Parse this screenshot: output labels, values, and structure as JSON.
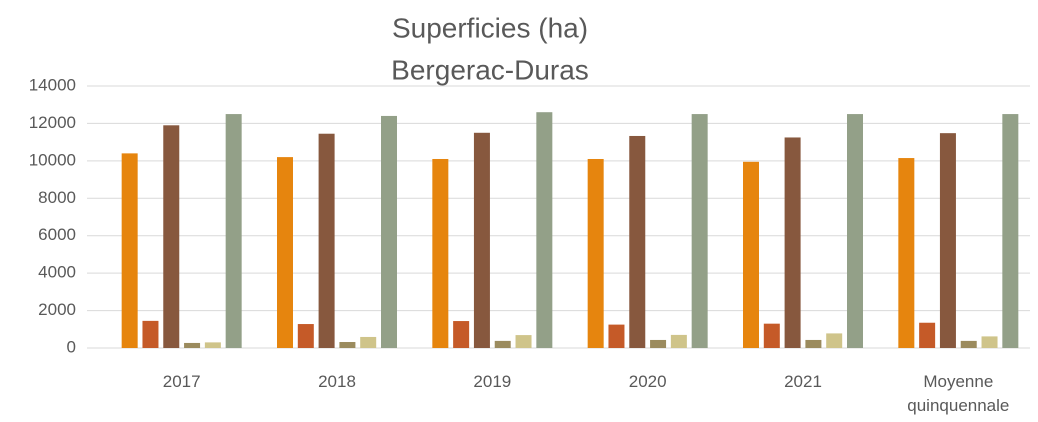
{
  "chart_data": {
    "type": "bar",
    "title": "Superficies (ha)",
    "subtitle": "Bergerac-Duras",
    "categories": [
      "2017",
      "2018",
      "2019",
      "2020",
      "2021",
      "Moyenne quinquennale"
    ],
    "series": [
      {
        "color": "#e6850e",
        "values": [
          10400,
          10200,
          10100,
          10100,
          9950,
          10150
        ]
      },
      {
        "color": "#c55a28",
        "values": [
          1450,
          1280,
          1440,
          1250,
          1300,
          1350
        ]
      },
      {
        "color": "#87583e",
        "values": [
          11900,
          11450,
          11500,
          11330,
          11250,
          11480
        ]
      },
      {
        "color": "#9b8b5e",
        "values": [
          270,
          320,
          380,
          430,
          430,
          380
        ]
      },
      {
        "color": "#cfc48a",
        "values": [
          300,
          590,
          690,
          700,
          780,
          620
        ]
      },
      {
        "color": "#93a088",
        "values": [
          12500,
          12400,
          12600,
          12500,
          12500,
          12500
        ]
      }
    ],
    "ylim": [
      0,
      14000
    ],
    "yticks": [
      0,
      2000,
      4000,
      6000,
      8000,
      10000,
      12000,
      14000
    ],
    "grid": true
  }
}
